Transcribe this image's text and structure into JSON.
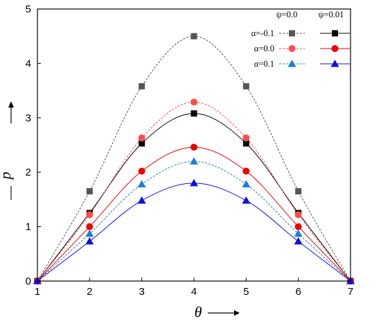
{
  "chart_data": {
    "type": "line",
    "xlabel": "θ",
    "ylabel": "p",
    "xlim": [
      1,
      7
    ],
    "ylim": [
      0,
      5
    ],
    "xticks": [
      1,
      2,
      3,
      4,
      5,
      6,
      7
    ],
    "yticks": [
      0,
      1,
      2,
      3,
      4,
      5
    ],
    "grid": false,
    "legend_position": "top-right",
    "legend": {
      "column_headers": [
        "ψ=0.0",
        "ψ=0.01"
      ],
      "row_labels": [
        "α=-0.1",
        "α=0.0",
        "α=0.1"
      ]
    },
    "x": [
      1,
      2,
      3,
      4,
      5,
      6,
      7
    ],
    "series": [
      {
        "name": "α=-0.1, ψ=0.0",
        "values": [
          0,
          1.65,
          3.58,
          4.5,
          3.58,
          1.65,
          0
        ],
        "color": "#555555",
        "marker": "square",
        "dashed": true
      },
      {
        "name": "α=-0.1, ψ=0.01",
        "values": [
          0,
          1.25,
          2.53,
          3.08,
          2.53,
          1.25,
          0
        ],
        "color": "#000000",
        "marker": "square",
        "dashed": false
      },
      {
        "name": "α=0.0, ψ=0.0",
        "values": [
          0,
          1.22,
          2.63,
          3.29,
          2.63,
          1.22,
          0
        ],
        "color": "#ff4d4d",
        "marker": "circle",
        "dashed": true
      },
      {
        "name": "α=0.0, ψ=0.01",
        "values": [
          0,
          1.0,
          2.02,
          2.46,
          2.02,
          1.0,
          0
        ],
        "color": "#ee0000",
        "marker": "circle",
        "dashed": false
      },
      {
        "name": "α=0.1, ψ=0.0",
        "values": [
          0,
          0.87,
          1.78,
          2.2,
          1.78,
          0.87,
          0
        ],
        "color": "#1e7fd6",
        "marker": "triangle",
        "dashed": true
      },
      {
        "name": "α=0.1, ψ=0.01",
        "values": [
          0,
          0.73,
          1.48,
          1.8,
          1.48,
          0.73,
          0
        ],
        "color": "#1010e0",
        "marker": "triangle",
        "dashed": false
      }
    ]
  }
}
